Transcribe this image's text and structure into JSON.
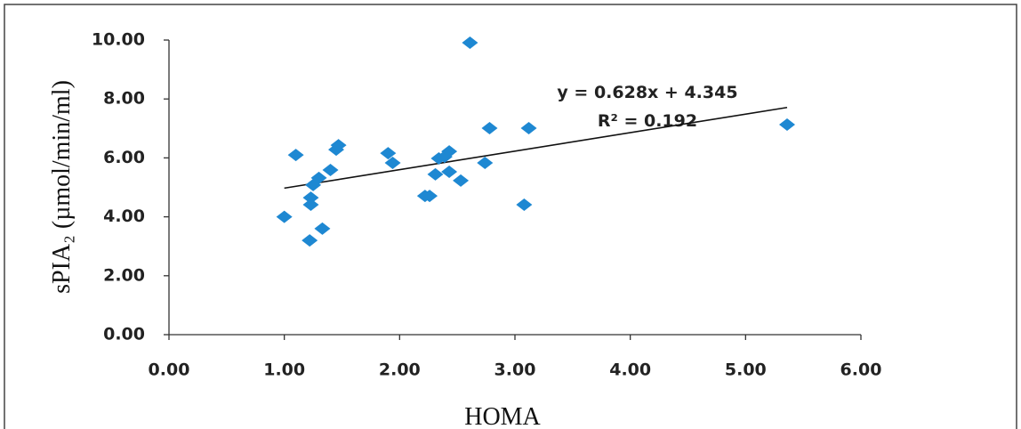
{
  "chart_data": {
    "type": "scatter",
    "x_label": "HOMA",
    "y_label": "sPIA₂ (µmol/min/ml)",
    "x": [
      1.0,
      1.1,
      1.22,
      1.23,
      1.23,
      1.25,
      1.3,
      1.33,
      1.4,
      1.45,
      1.47,
      1.9,
      1.94,
      2.22,
      2.26,
      2.31,
      2.34,
      2.39,
      2.43,
      2.43,
      2.53,
      2.61,
      2.74,
      2.78,
      3.08,
      3.12,
      5.36
    ],
    "series": [
      {
        "color": "#1e88d2",
        "values": [
          4.0,
          6.1,
          3.2,
          4.41,
          4.65,
          5.08,
          5.32,
          3.6,
          5.59,
          6.28,
          6.43,
          6.16,
          5.83,
          4.71,
          4.71,
          5.44,
          5.98,
          6.04,
          6.22,
          5.53,
          5.23,
          9.91,
          5.83,
          7.01,
          4.41,
          7.01,
          7.13
        ]
      }
    ],
    "trendline": {
      "slope": 0.628,
      "intercept": 4.345,
      "equation": "y = 0.628x + 4.345",
      "r_squared_label": "R² = 0.192",
      "color": "#111111"
    },
    "xlim": [
      0,
      6
    ],
    "ylim": [
      0,
      10
    ],
    "xticks": [
      {
        "value": 0,
        "label": "0.00"
      },
      {
        "value": 1,
        "label": "1.00"
      },
      {
        "value": 2,
        "label": "2.00"
      },
      {
        "value": 3,
        "label": "3.00"
      },
      {
        "value": 4,
        "label": "4.00"
      },
      {
        "value": 5,
        "label": "5.00"
      },
      {
        "value": 6,
        "label": "6.00"
      }
    ],
    "yticks": [
      {
        "value": 0,
        "label": "0.00"
      },
      {
        "value": 2,
        "label": "2.00"
      },
      {
        "value": 4,
        "label": "4.00"
      },
      {
        "value": 6,
        "label": "6.00"
      },
      {
        "value": 8,
        "label": "8.00"
      },
      {
        "value": 10,
        "label": "10.00"
      }
    ],
    "grid": false
  }
}
